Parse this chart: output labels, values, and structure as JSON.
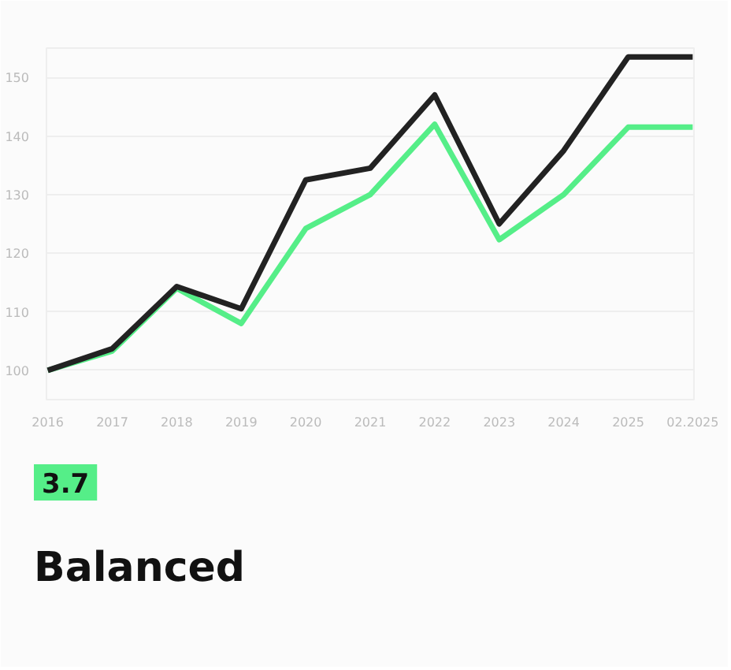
{
  "chart_data": {
    "type": "line",
    "categories": [
      "2016",
      "2017",
      "2018",
      "2019",
      "2020",
      "2021",
      "2022",
      "2023",
      "2024",
      "2025",
      "02.2025"
    ],
    "series": [
      {
        "color": "#55ee88",
        "values": [
          100,
          103.3,
          114,
          108,
          124.2,
          130,
          142,
          122.3,
          130,
          141.5,
          141.5
        ]
      },
      {
        "color": "#222222",
        "values": [
          100,
          103.7,
          114.3,
          110.5,
          132.5,
          134.5,
          147,
          125,
          137.5,
          153.5,
          153.5
        ]
      }
    ],
    "ylim": [
      95,
      155
    ],
    "yticks": [
      {
        "value": 95,
        "label": null
      },
      100,
      110,
      120,
      130,
      140,
      150
    ],
    "grid": "y",
    "marker": "none",
    "line_style": "solid",
    "annotations": [
      "3.7",
      "Balanced"
    ]
  }
}
